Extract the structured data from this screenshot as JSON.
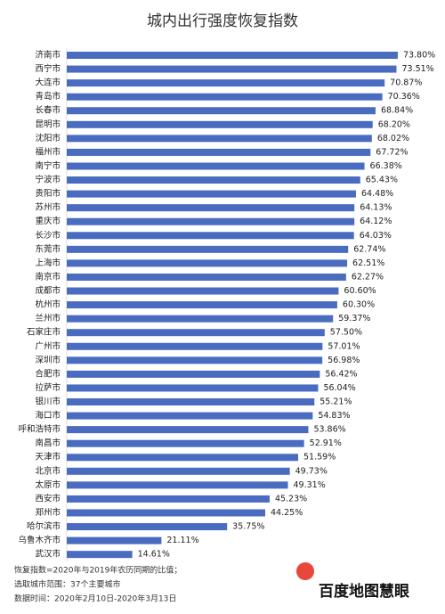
{
  "chart_data": {
    "type": "bar",
    "orientation": "horizontal",
    "title": "城内出行强度恢复指数",
    "categories": [
      "济南市",
      "西宁市",
      "大连市",
      "青岛市",
      "长春市",
      "昆明市",
      "沈阳市",
      "福州市",
      "南宁市",
      "宁波市",
      "贵阳市",
      "苏州市",
      "重庆市",
      "长沙市",
      "东莞市",
      "上海市",
      "南京市",
      "成都市",
      "杭州市",
      "兰州市",
      "石家庄市",
      "广州市",
      "深圳市",
      "合肥市",
      "拉萨市",
      "银川市",
      "海口市",
      "呼和浩特市",
      "南昌市",
      "天津市",
      "北京市",
      "太原市",
      "西安市",
      "郑州市",
      "哈尔滨市",
      "乌鲁木齐市",
      "武汉市"
    ],
    "values": [
      73.8,
      73.51,
      70.87,
      70.36,
      68.84,
      68.2,
      68.02,
      67.72,
      66.38,
      65.43,
      64.48,
      64.13,
      64.12,
      64.03,
      62.74,
      62.51,
      62.27,
      60.6,
      60.3,
      59.37,
      57.5,
      57.01,
      56.98,
      56.42,
      56.04,
      55.21,
      54.83,
      53.86,
      52.91,
      51.59,
      49.73,
      49.31,
      45.23,
      44.25,
      35.75,
      21.11,
      14.61
    ],
    "value_labels": [
      "73.80%",
      "73.51%",
      "70.87%",
      "70.36%",
      "68.84%",
      "68.20%",
      "68.02%",
      "67.72%",
      "66.38%",
      "65.43%",
      "64.48%",
      "64.13%",
      "64.12%",
      "64.03%",
      "62.74%",
      "62.51%",
      "62.27%",
      "60.60%",
      "60.30%",
      "59.37%",
      "57.50%",
      "57.01%",
      "56.98%",
      "56.42%",
      "56.04%",
      "55.21%",
      "54.83%",
      "53.86%",
      "52.91%",
      "51.59%",
      "49.73%",
      "49.31%",
      "45.23%",
      "44.25%",
      "35.75%",
      "21.11%",
      "14.61%"
    ],
    "color": "#4a6cc0",
    "notes": [
      "恢复指数=2020年与2019年农历同期的比值；",
      "选取城市范围：37个主要城市",
      "数据时间：2020年2月10日-2020年3月13日"
    ],
    "brand_badge": "du",
    "brand": "百度地图慧眼"
  }
}
